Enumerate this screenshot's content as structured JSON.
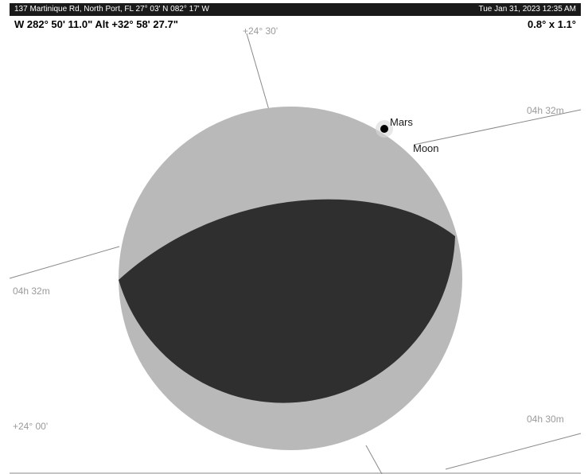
{
  "status": {
    "location": "137 Martinique Rd, North Port, FL  27° 03' N 082° 17' W",
    "datetime": "Tue Jan 31, 2023  12:35 AM"
  },
  "readout": {
    "position": "W 282° 50' 11.0\" Alt +32° 58' 27.7\"",
    "field_of_view": "0.8° x 1.1°"
  },
  "grid_labels": {
    "dec_top": "+24° 30'",
    "dec_bottom": "+24° 00'",
    "ra_upper_right": "04h 32m",
    "ra_left": "04h 32m",
    "ra_lower_right": "04h 30m"
  },
  "objects": {
    "planet": "Mars",
    "moon": "Moon"
  },
  "colors": {
    "moon_lit": "#b9b9b9",
    "moon_dark": "#2f2f2f",
    "grid_line": "#8a8a8a",
    "planet": "#000000"
  }
}
